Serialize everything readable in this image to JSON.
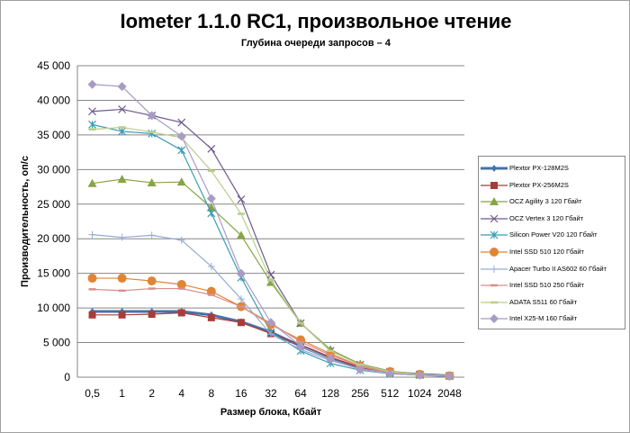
{
  "chart_data": {
    "type": "line",
    "title": "Iometer 1.1.0 RC1, произвольное чтение",
    "subtitle": "Глубина очереди запросов – 4",
    "xlabel": "Размер блока, Кбайт",
    "ylabel": "Производительность, оп/с",
    "ylim": [
      0,
      45000
    ],
    "yticks": [
      "0",
      "5 000",
      "10 000",
      "15 000",
      "20 000",
      "25 000",
      "30 000",
      "35 000",
      "40 000",
      "45 000"
    ],
    "ytick_values": [
      0,
      5000,
      10000,
      15000,
      20000,
      25000,
      30000,
      35000,
      40000,
      45000
    ],
    "categories": [
      "0,5",
      "1",
      "2",
      "4",
      "8",
      "16",
      "32",
      "64",
      "128",
      "256",
      "512",
      "1024",
      "2048"
    ],
    "grid": true,
    "legend_position": "right",
    "series": [
      {
        "name": "Plextor PX-128M2S",
        "color": "#4472a8",
        "marker": "diamond-thick",
        "values": [
          9500,
          9500,
          9500,
          9500,
          9000,
          8000,
          6500,
          4500,
          2700,
          1300,
          700,
          400,
          200
        ]
      },
      {
        "name": "Plextor PX-256M2S",
        "color": "#a83c3a",
        "marker": "square",
        "values": [
          9000,
          9000,
          9100,
          9300,
          8600,
          7900,
          6300,
          4700,
          2900,
          1400,
          700,
          400,
          200
        ]
      },
      {
        "name": "OCZ Agility  3 120 Гбайт",
        "color": "#86a545",
        "marker": "triangle",
        "values": [
          28000,
          28600,
          28100,
          28200,
          24500,
          20500,
          13700,
          7800,
          4000,
          1900,
          900,
          400,
          200
        ]
      },
      {
        "name": "OCZ Vertex  3 120 Гбайт",
        "color": "#6e5a8e",
        "marker": "x",
        "values": [
          38400,
          38700,
          37800,
          36800,
          33000,
          25700,
          14800,
          7800,
          3800,
          1800,
          800,
          400,
          200
        ]
      },
      {
        "name": "Silicon  Power  V20 120 Гбайт",
        "color": "#3c9cb4",
        "marker": "star",
        "values": [
          36500,
          35500,
          35200,
          32800,
          23700,
          14400,
          6500,
          3800,
          2000,
          1000,
          500,
          300,
          150
        ]
      },
      {
        "name": "Intel  SSD 510 120 Гбайт",
        "color": "#e08535",
        "marker": "circle",
        "values": [
          14300,
          14300,
          13900,
          13400,
          12400,
          10200,
          7600,
          5400,
          3400,
          1600,
          800,
          400,
          200
        ]
      },
      {
        "name": "Apacer  Turbo II AS602 60 Гбайт",
        "color": "#94acd4",
        "marker": "plus",
        "values": [
          20600,
          20200,
          20500,
          19800,
          16000,
          11300,
          6200,
          4000,
          2400,
          1200,
          600,
          300,
          150
        ]
      },
      {
        "name": "Intel  SSD 510 250 Гбайт",
        "color": "#d88e8c",
        "marker": "dash",
        "values": [
          12700,
          12500,
          12800,
          12800,
          11900,
          10200,
          7800,
          5100,
          3200,
          1500,
          700,
          400,
          200
        ]
      },
      {
        "name": "ADATA  S511 60 Гбайт",
        "color": "#b8cf8c",
        "marker": "dash",
        "values": [
          35800,
          36100,
          35400,
          34600,
          29800,
          23600,
          14000,
          7800,
          3800,
          1800,
          800,
          400,
          200
        ]
      },
      {
        "name": "Intel  X25-M 160 Гбайт",
        "color": "#a99bc4",
        "marker": "diamond",
        "values": [
          42300,
          42000,
          37800,
          34800,
          25800,
          15000,
          7900,
          4500,
          2600,
          1100,
          500,
          300,
          150
        ]
      }
    ]
  }
}
